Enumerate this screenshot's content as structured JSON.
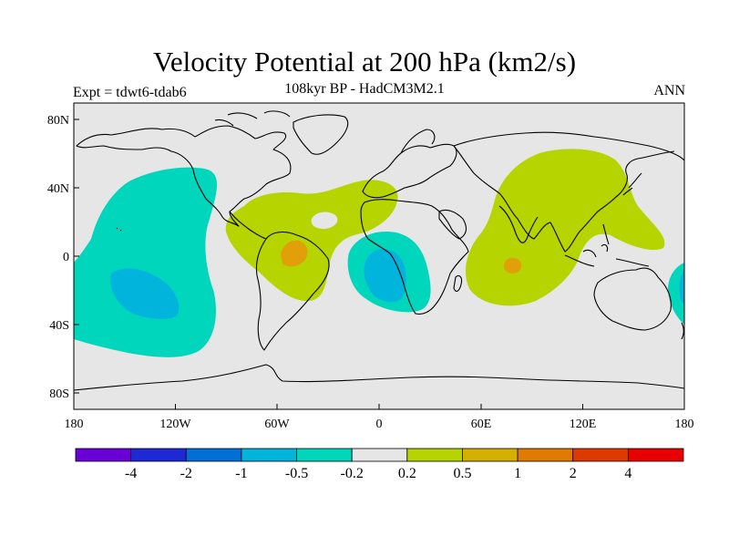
{
  "title": "Velocity Potential at 200 hPa (km2/s)",
  "subtitle": "108kyr BP - HadCM3M2.1",
  "left_label": "Expt = tdwt6-tdab6",
  "right_label": "ANN",
  "map": {
    "lat_ticks": [
      "80N",
      "40N",
      "0",
      "40S",
      "80S"
    ],
    "lon_ticks": [
      "180",
      "120W",
      "60W",
      "0",
      "60E",
      "120E",
      "180"
    ],
    "colors": {
      "background": "#e6e6e6",
      "teal": "#00d6bb",
      "cyan": "#00b4dc",
      "lime": "#b5d400",
      "orange": "#e19f0a",
      "coast": "#000000"
    }
  },
  "colorbar": {
    "colors": [
      "#6a00d8",
      "#1e29d6",
      "#0070d6",
      "#00b4dc",
      "#00d6bb",
      "#e6e6e6",
      "#b5d400",
      "#d6b000",
      "#e07a00",
      "#de3a00",
      "#e80000"
    ],
    "labels": [
      "-4",
      "-2",
      "-1",
      "-0.5",
      "-0.2",
      "0.2",
      "0.5",
      "1",
      "2",
      "4"
    ]
  }
}
